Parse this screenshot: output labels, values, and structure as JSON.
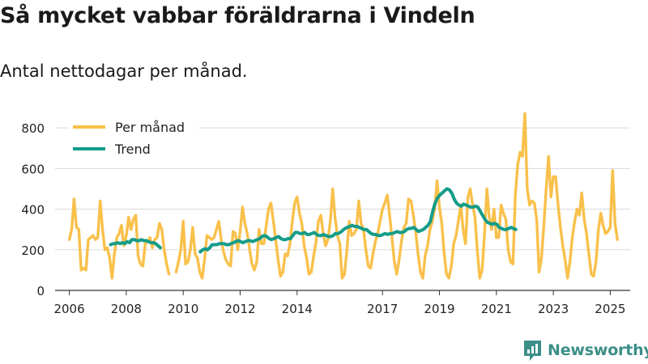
{
  "title": "Så mycket vabbar föräldrarna i Vindeln",
  "subtitle": "Antal nettodagar per månad.",
  "brand": {
    "name": "Newsworthy",
    "icon": "newsworthy-logo-icon"
  },
  "colors": {
    "monthly": "#f9c04b",
    "trend": "#149c89",
    "grid": "#d9d9d9",
    "axis": "#333333",
    "brand": "#3c8f88"
  },
  "chart_data": {
    "type": "line",
    "title": "Så mycket vabbar föräldrarna i Vindeln",
    "subtitle": "Antal nettodagar per månad.",
    "xlabel": "",
    "ylabel": "",
    "xlim": [
      2005.5,
      2025.7
    ],
    "ylim": [
      0,
      880
    ],
    "yticks": [
      0,
      200,
      400,
      600,
      800
    ],
    "ytick_labels": [
      "0",
      "200",
      "400",
      "600",
      "800"
    ],
    "xticks": [
      2006,
      2008,
      2010,
      2012,
      2014,
      2017,
      2019,
      2021,
      2023,
      2025
    ],
    "xtick_labels": [
      "2006",
      "2008",
      "2010",
      "2012",
      "2014",
      "2017",
      "2019",
      "2021",
      "2023",
      "2025"
    ],
    "grid": true,
    "legend": "top-left",
    "series": [
      {
        "name": "Per månad",
        "color": "#f9c04b",
        "segments": [
          {
            "start": 2006.0,
            "values": [
              250,
              300,
              450,
              310,
              300,
              100,
              110,
              100,
              250,
              260,
              270,
              250,
              260,
              440,
              300,
              200,
              210,
              160,
              60,
              180,
              260,
              280,
              320,
              220,
              270,
              360,
              300,
              350,
              370,
              170,
              130,
              120,
              230,
              240,
              260,
              210,
              250,
              260,
              330,
              300,
              200,
              130,
              80
            ]
          },
          {
            "start": 2009.75,
            "values": [
              90,
              140,
              200,
              340,
              130,
              140,
              200,
              310,
              180,
              160,
              90,
              60,
              150,
              270,
              260,
              250,
              260,
              300,
              340,
              250,
              190,
              150,
              130,
              120,
              290,
              280,
              200,
              290,
              410,
              330,
              280,
              200,
              130,
              100,
              140,
              300,
              230,
              230,
              320,
              400,
              430,
              340,
              250,
              150,
              70,
              90,
              180,
              170,
              230,
              340,
              430,
              460,
              380,
              330,
              220,
              160,
              80,
              90,
              170,
              240,
              340,
              370,
              280,
              220,
              250,
              340,
              500,
              360,
              270,
              230,
              60,
              80,
              200,
              340,
              270,
              280,
              300,
              440,
              330,
              300,
              200,
              120,
              110,
              180,
              240,
              280,
              340,
              400,
              430,
              470,
              370,
              260,
              140,
              80,
              150,
              240,
              310,
              330,
              450,
              440,
              370,
              290,
              180,
              90,
              60,
              170,
              220,
              300,
              340,
              400,
              540,
              410,
              330,
              180,
              80,
              60,
              120,
              230,
              270,
              340,
              420,
              300,
              230,
              460,
              500,
              420,
              360,
              190,
              60,
              100,
              280,
              500,
              360,
              300,
              400,
              260,
              260,
              420,
              380,
              350,
              200,
              140,
              130,
              470,
              620,
              680,
              660,
              870,
              500,
              420,
              440,
              430,
              350,
              90,
              160,
              320,
              500,
              660,
              460,
              560,
              560,
              420,
              310,
              220,
              150,
              60,
              140,
              260,
              340,
              400,
              370,
              480,
              350,
              280,
              180,
              80,
              70,
              140,
              300,
              380,
              320,
              280,
              290,
              310,
              590,
              330,
              250
            ]
          }
        ]
      },
      {
        "name": "Trend",
        "color": "#149c89",
        "segments": [
          {
            "start": 2007.45,
            "values": [
              225,
              230,
              230,
              235,
              230,
              235,
              230,
              240,
              235,
              250,
              250,
              245,
              245,
              250,
              245,
              245,
              240,
              235,
              235,
              230,
              220,
              210
            ]
          },
          {
            "start": 2010.6,
            "values": [
              190,
              200,
              205,
              200,
              210,
              225,
              225,
              225,
              230,
              230,
              230,
              225,
              225,
              230,
              235,
              240,
              245,
              240,
              235,
              240,
              245,
              245,
              240,
              245,
              250,
              255,
              265,
              270,
              265,
              255,
              250,
              255,
              260,
              265,
              255,
              250,
              250,
              255,
              255,
              270,
              285,
              285,
              280,
              280,
              285,
              275,
              275,
              280,
              285,
              275,
              270,
              270,
              275,
              270,
              265,
              265,
              270,
              280,
              280,
              285,
              295,
              305,
              310,
              315,
              320,
              315,
              315,
              310,
              305,
              300,
              300,
              290,
              280,
              275,
              275,
              270,
              270,
              275,
              280,
              275,
              280,
              280,
              285,
              290,
              285,
              285,
              290,
              300,
              305,
              305,
              310,
              300,
              290,
              295,
              300,
              310,
              320,
              340,
              390,
              430,
              455,
              470,
              480,
              490,
              500,
              495,
              480,
              450,
              430,
              420,
              415,
              425,
              420,
              415,
              410,
              410,
              415,
              410,
              390,
              370,
              350,
              335,
              330,
              325,
              330,
              325,
              310,
              305,
              300,
              300,
              305,
              310,
              305,
              300
            ]
          }
        ]
      }
    ]
  }
}
